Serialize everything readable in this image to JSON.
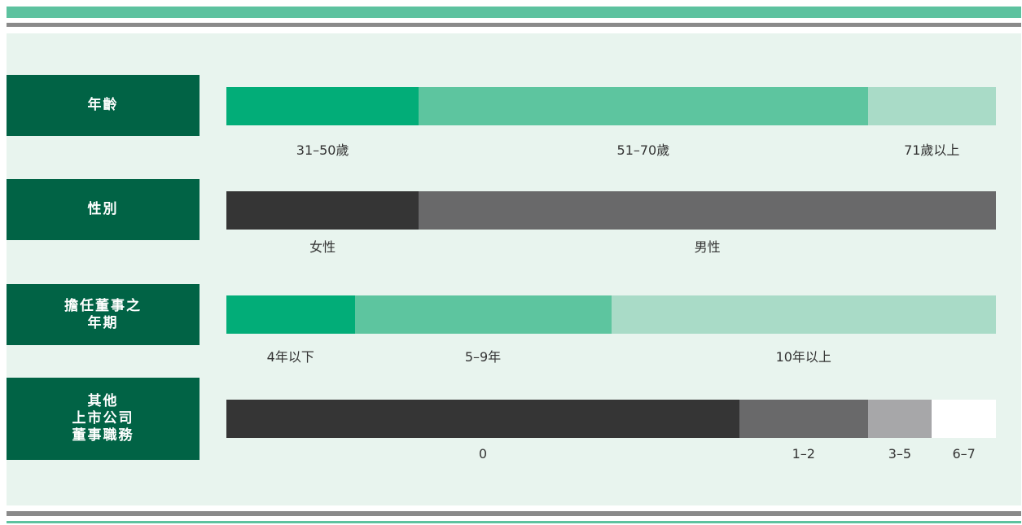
{
  "chart_data": {
    "type": "bar",
    "orientation": "horizontal-stacked",
    "rows": [
      {
        "label_lines": [
          "年齡"
        ],
        "segments": [
          {
            "label": "31–50歲",
            "value": 3,
            "color": "#02ad78"
          },
          {
            "label": "51–70歲",
            "value": 7,
            "color": "#5dc59f"
          },
          {
            "label": "71歲以上",
            "value": 2,
            "color": "#a9dbc7"
          }
        ]
      },
      {
        "label_lines": [
          "性別"
        ],
        "segments": [
          {
            "label": "女性",
            "value": 3,
            "color": "#353535"
          },
          {
            "label": "男性",
            "value": 9,
            "color": "#69696a"
          }
        ]
      },
      {
        "label_lines": [
          "擔任董事之",
          "年期"
        ],
        "segments": [
          {
            "label": "4年以下",
            "value": 2,
            "color": "#02ad78"
          },
          {
            "label": "5–9年",
            "value": 4,
            "color": "#5dc59f"
          },
          {
            "label": "10年以上",
            "value": 6,
            "color": "#a9dbc7"
          }
        ]
      },
      {
        "label_lines": [
          "其他",
          "上市公司",
          "董事職務"
        ],
        "segments": [
          {
            "label": "0",
            "value": 8,
            "color": "#353535"
          },
          {
            "label": "1–2",
            "value": 2,
            "color": "#69696a"
          },
          {
            "label": "3–5",
            "value": 1,
            "color": "#a7a7a9"
          },
          {
            "label": "6–7",
            "value": 1,
            "color": "#ffffff"
          }
        ]
      }
    ]
  }
}
